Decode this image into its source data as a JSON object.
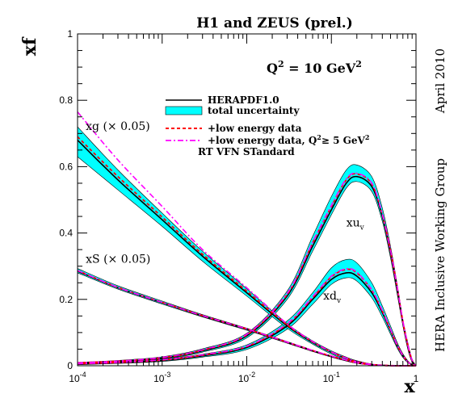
{
  "chart_data": {
    "type": "line",
    "title": "H1 and ZEUS (prel.)",
    "ylabel": "xf",
    "xlabel": "x",
    "xscale": "log",
    "xlim": [
      0.0001,
      1
    ],
    "ylim": [
      0,
      1
    ],
    "annotation_q2_prefix": "Q",
    "annotation_q2_exp": "2",
    "annotation_q2_rest": " = 10 GeV",
    "annotation_q2_unit_exp": "2",
    "side_label_1": "April 2010",
    "side_label_2": "HERA Inclusive Working Group",
    "x_ticks": [
      {
        "value": 0.0001,
        "base": "10",
        "exp": "-4"
      },
      {
        "value": 0.001,
        "base": "10",
        "exp": "-3"
      },
      {
        "value": 0.01,
        "base": "10",
        "exp": "-2"
      },
      {
        "value": 0.1,
        "base": "10",
        "exp": "-1"
      },
      {
        "value": 1,
        "base": "1",
        "exp": ""
      }
    ],
    "y_ticks": [
      {
        "value": 0,
        "label": "0"
      },
      {
        "value": 0.2,
        "label": "0.2"
      },
      {
        "value": 0.4,
        "label": "0.4"
      },
      {
        "value": 0.6,
        "label": "0.6"
      },
      {
        "value": 0.8,
        "label": "0.8"
      },
      {
        "value": 1,
        "label": "1"
      }
    ],
    "legend": {
      "placement": "top-left",
      "entries": [
        {
          "label": "HERAPDF1.0",
          "style": "solid"
        },
        {
          "label": "total uncertainty",
          "style": "band"
        },
        {
          "label": "+low energy data",
          "style": "dashed"
        },
        {
          "label": "+low energy data, Q",
          "label_exp": "2",
          "label_rest": "≥ 5 GeV",
          "label_exp2": "2",
          "style": "dashdot"
        },
        {
          "label": "RT VFN STandard",
          "style": "none"
        }
      ]
    },
    "curve_labels": [
      {
        "name": "xu",
        "sub": "v",
        "x": 0.15,
        "y": 0.42
      },
      {
        "name": "xd",
        "sub": "v",
        "x": 0.08,
        "y": 0.2
      },
      {
        "name": "xg (× 0.05)",
        "sub": "",
        "x": 0.000125,
        "y": 0.71
      },
      {
        "name": "xS (× 0.05)",
        "sub": "",
        "x": 0.000125,
        "y": 0.31
      }
    ],
    "x": [
      0.0001,
      0.0003,
      0.001,
      0.003,
      0.01,
      0.03,
      0.06,
      0.1,
      0.15,
      0.2,
      0.3,
      0.4,
      0.5,
      0.6,
      0.7,
      0.8,
      0.9,
      1.0
    ],
    "series": [
      {
        "name": "xu",
        "sub": "v",
        "central": [
          0.008,
          0.013,
          0.023,
          0.045,
          0.09,
          0.21,
          0.36,
          0.47,
          0.55,
          0.57,
          0.54,
          0.45,
          0.34,
          0.23,
          0.13,
          0.06,
          0.015,
          0
        ],
        "band_lo": [
          0.006,
          0.011,
          0.02,
          0.041,
          0.084,
          0.2,
          0.345,
          0.455,
          0.535,
          0.555,
          0.525,
          0.435,
          0.325,
          0.215,
          0.12,
          0.05,
          0.01,
          0
        ],
        "band_hi": [
          0.01,
          0.016,
          0.027,
          0.051,
          0.098,
          0.225,
          0.39,
          0.51,
          0.59,
          0.605,
          0.57,
          0.475,
          0.36,
          0.245,
          0.14,
          0.07,
          0.02,
          0
        ],
        "dashed": [
          0.009,
          0.014,
          0.024,
          0.047,
          0.093,
          0.215,
          0.37,
          0.48,
          0.56,
          0.578,
          0.548,
          0.455,
          0.345,
          0.235,
          0.133,
          0.062,
          0.016,
          0
        ],
        "dashdot": [
          0.009,
          0.014,
          0.025,
          0.048,
          0.095,
          0.218,
          0.372,
          0.483,
          0.563,
          0.58,
          0.55,
          0.457,
          0.347,
          0.236,
          0.134,
          0.063,
          0.016,
          0
        ]
      },
      {
        "name": "xd",
        "sub": "v",
        "central": [
          0.005,
          0.009,
          0.016,
          0.03,
          0.055,
          0.12,
          0.2,
          0.26,
          0.28,
          0.27,
          0.22,
          0.16,
          0.105,
          0.06,
          0.03,
          0.012,
          0.003,
          0
        ],
        "band_lo": [
          0.003,
          0.007,
          0.013,
          0.026,
          0.049,
          0.11,
          0.185,
          0.245,
          0.265,
          0.255,
          0.205,
          0.147,
          0.095,
          0.053,
          0.025,
          0.009,
          0.002,
          0
        ],
        "band_hi": [
          0.008,
          0.012,
          0.02,
          0.035,
          0.063,
          0.135,
          0.22,
          0.295,
          0.32,
          0.31,
          0.25,
          0.18,
          0.12,
          0.07,
          0.036,
          0.015,
          0.004,
          0
        ],
        "dashed": [
          0.006,
          0.01,
          0.017,
          0.032,
          0.058,
          0.125,
          0.205,
          0.268,
          0.29,
          0.28,
          0.228,
          0.165,
          0.108,
          0.062,
          0.031,
          0.012,
          0.003,
          0
        ],
        "dashdot": [
          0.006,
          0.01,
          0.018,
          0.033,
          0.059,
          0.127,
          0.208,
          0.27,
          0.292,
          0.282,
          0.229,
          0.166,
          0.109,
          0.062,
          0.031,
          0.012,
          0.003,
          0
        ]
      },
      {
        "name": "xg (× 0.05)",
        "central": [
          0.68,
          0.56,
          0.44,
          0.33,
          0.22,
          0.12,
          0.07,
          0.04,
          0.022,
          0.012,
          0.004,
          0.0015,
          0.0005,
          0.0002,
          0,
          0,
          0,
          0
        ],
        "band_lo": [
          0.63,
          0.53,
          0.42,
          0.315,
          0.21,
          0.113,
          0.065,
          0.035,
          0.018,
          0.009,
          0.003,
          0.001,
          0.0003,
          0.0001,
          0,
          0,
          0,
          0
        ],
        "band_hi": [
          0.72,
          0.59,
          0.46,
          0.345,
          0.232,
          0.127,
          0.075,
          0.045,
          0.026,
          0.015,
          0.005,
          0.002,
          0.0007,
          0.0003,
          0,
          0,
          0,
          0
        ],
        "dashed": [
          0.69,
          0.57,
          0.448,
          0.336,
          0.225,
          0.123,
          0.072,
          0.041,
          0.023,
          0.012,
          0.004,
          0.0015,
          0.0005,
          0.0002,
          0,
          0,
          0,
          0
        ],
        "dashdot": [
          0.765,
          0.62,
          0.48,
          0.35,
          0.235,
          0.126,
          0.073,
          0.042,
          0.023,
          0.012,
          0.004,
          0.0015,
          0.0005,
          0.0002,
          0,
          0,
          0,
          0
        ]
      },
      {
        "name": "xS (× 0.05)",
        "central": [
          0.285,
          0.235,
          0.19,
          0.15,
          0.11,
          0.07,
          0.045,
          0.028,
          0.016,
          0.009,
          0.003,
          0.001,
          0.0003,
          0.0001,
          0,
          0,
          0,
          0
        ],
        "band_lo": [
          0.28,
          0.231,
          0.186,
          0.147,
          0.107,
          0.068,
          0.043,
          0.026,
          0.014,
          0.007,
          0.002,
          0.0007,
          0.0002,
          0,
          0,
          0,
          0,
          0
        ],
        "band_hi": [
          0.293,
          0.241,
          0.195,
          0.154,
          0.113,
          0.073,
          0.047,
          0.03,
          0.018,
          0.011,
          0.004,
          0.0013,
          0.0004,
          0.0001,
          0,
          0,
          0,
          0
        ],
        "dashed": [
          0.287,
          0.236,
          0.191,
          0.151,
          0.111,
          0.071,
          0.046,
          0.029,
          0.017,
          0.009,
          0.003,
          0.001,
          0.0003,
          0.0001,
          0,
          0,
          0,
          0
        ],
        "dashdot": [
          0.287,
          0.236,
          0.191,
          0.151,
          0.111,
          0.071,
          0.046,
          0.029,
          0.017,
          0.009,
          0.003,
          0.001,
          0.0003,
          0.0001,
          0,
          0,
          0,
          0
        ]
      }
    ],
    "colors": {
      "band": "#00ffff",
      "central": "#000000",
      "dashed": "#ff0000",
      "dashdot": "#ff00ff",
      "frame": "#000000"
    },
    "grid": false
  }
}
